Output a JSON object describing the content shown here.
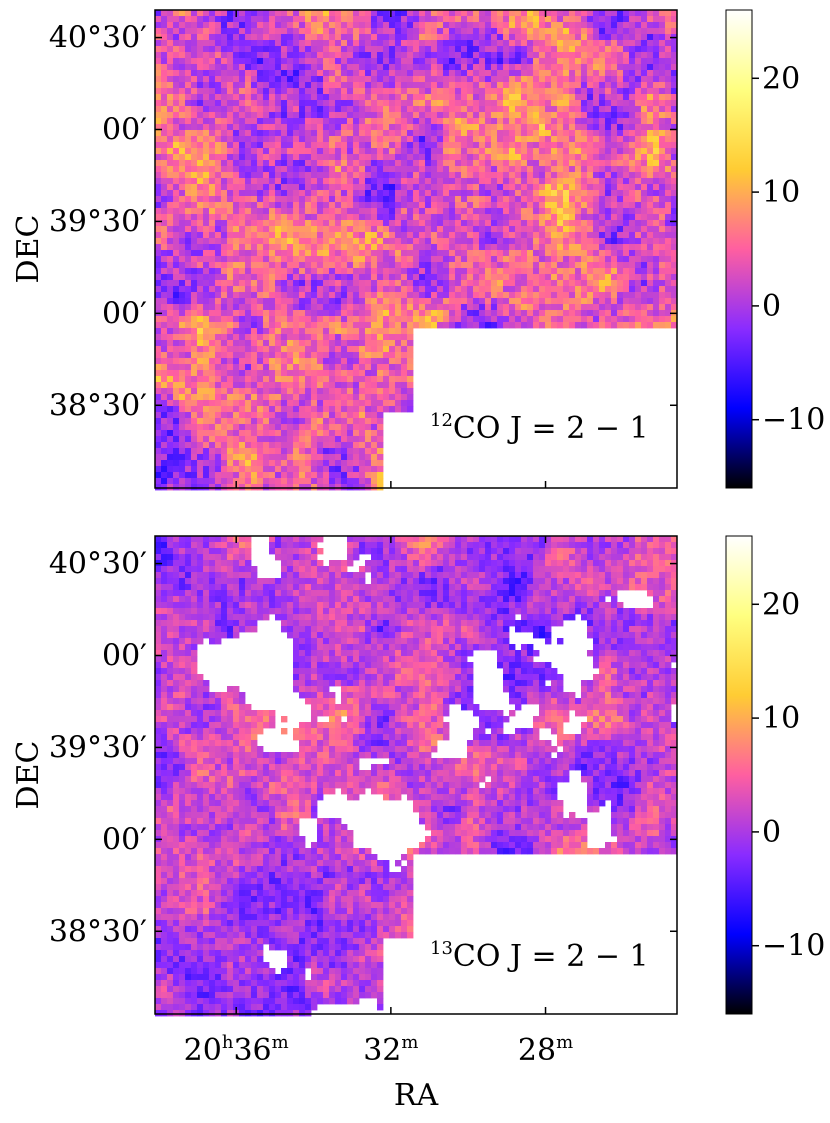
{
  "colormap": {
    "name": "gnuplot2",
    "stops": [
      "#000000",
      "#0000ff",
      "#8a2cff",
      "#ff5fa0",
      "#ffcc33",
      "#ffff80",
      "#ffffff"
    ]
  },
  "chart_data": [
    {
      "type": "heatmap",
      "panel": "top",
      "annotation": {
        "sup": "12",
        "text": "CO J = 2 − 1"
      },
      "ylabel": "DEC",
      "xlabel": "",
      "yticks": [
        {
          "dec": 40.5,
          "text": "40°30′"
        },
        {
          "dec": 40.0,
          "text": "00′"
        },
        {
          "dec": 39.5,
          "text": "39°30′"
        },
        {
          "dec": 39.0,
          "text": "00′"
        },
        {
          "dec": 38.5,
          "text": "38°30′"
        }
      ],
      "xticks": [
        {
          "ra_min": 36,
          "base": "20",
          "sup1": "h",
          "mid": "36",
          "sup2": "m"
        },
        {
          "ra_min": 32,
          "base": "",
          "sup1": "",
          "mid": "32",
          "sup2": "m"
        },
        {
          "ra_min": 28,
          "base": "",
          "sup1": "",
          "mid": "28",
          "sup2": "m"
        }
      ],
      "colorbar": {
        "ticks": [
          20,
          10,
          0,
          -10
        ],
        "range": [
          -16,
          26
        ]
      },
      "xlim_ra_min": [
        38.1,
        24.6
      ],
      "ylim_dec": [
        38.05,
        40.65
      ],
      "masked_region": {
        "ra_min_from": 31.5,
        "dec_below": 38.95
      },
      "value_range": [
        -12,
        20
      ],
      "coverage": 0.97
    },
    {
      "type": "heatmap",
      "panel": "bottom",
      "annotation": {
        "sup": "13",
        "text": "CO J = 2 − 1"
      },
      "ylabel": "DEC",
      "xlabel": "RA",
      "yticks": [
        {
          "dec": 40.5,
          "text": "40°30′"
        },
        {
          "dec": 40.0,
          "text": "00′"
        },
        {
          "dec": 39.5,
          "text": "39°30′"
        },
        {
          "dec": 39.0,
          "text": "00′"
        },
        {
          "dec": 38.5,
          "text": "38°30′"
        }
      ],
      "xticks": [
        {
          "ra_min": 36,
          "base": "20",
          "sup1": "h",
          "mid": "36",
          "sup2": "m"
        },
        {
          "ra_min": 32,
          "base": "",
          "sup1": "",
          "mid": "32",
          "sup2": "m"
        },
        {
          "ra_min": 28,
          "base": "",
          "sup1": "",
          "mid": "28",
          "sup2": "m"
        }
      ],
      "colorbar": {
        "ticks": [
          20,
          10,
          0,
          -10
        ],
        "range": [
          -16,
          26
        ]
      },
      "xlim_ra_min": [
        38.1,
        24.6
      ],
      "ylim_dec": [
        38.05,
        40.65
      ],
      "masked_region": {
        "ra_min_from": 31.5,
        "dec_below": 38.95
      },
      "value_range": [
        -10,
        14
      ],
      "coverage": 0.58
    }
  ]
}
